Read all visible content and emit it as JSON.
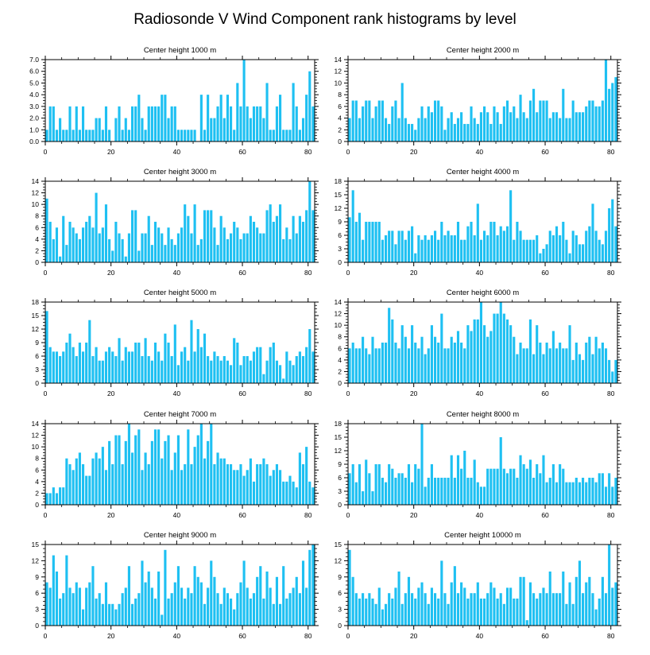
{
  "title": "Radiosonde V Wind Component rank histograms by level",
  "colors": {
    "bar": "#1ec0f2",
    "axis": "#000000",
    "background": "#ffffff"
  },
  "chart_data": [
    {
      "type": "bar",
      "title": "Center height 1000 m",
      "xlim": [
        0,
        82
      ],
      "xticks": [
        0,
        20,
        40,
        60,
        80
      ],
      "ylim": [
        0,
        7
      ],
      "yticks": [
        0,
        1,
        2,
        3,
        4,
        5,
        6,
        7
      ],
      "yticklabels": [
        "0.0",
        "1.0",
        "2.0",
        "3.0",
        "4.0",
        "5.0",
        "6.0",
        "7.0"
      ],
      "values": [
        1,
        3,
        3,
        1,
        2,
        1,
        1,
        3,
        1,
        3,
        1,
        3,
        1,
        1,
        1,
        2,
        2,
        1,
        3,
        1,
        0,
        2,
        3,
        1,
        2,
        1,
        3,
        3,
        4,
        2,
        1,
        3,
        3,
        3,
        3,
        4,
        4,
        2,
        3,
        3,
        1,
        1,
        1,
        1,
        1,
        1,
        0,
        4,
        1,
        4,
        2,
        2,
        3,
        4,
        2,
        4,
        3,
        1,
        5,
        3,
        7,
        3,
        2,
        3,
        3,
        3,
        2,
        5,
        1,
        1,
        3,
        4,
        1,
        1,
        1,
        5,
        3,
        1,
        2,
        4,
        6,
        3
      ]
    },
    {
      "type": "bar",
      "title": "Center height 2000 m",
      "xlim": [
        0,
        82
      ],
      "xticks": [
        0,
        20,
        40,
        60,
        80
      ],
      "ylim": [
        0,
        14
      ],
      "yticks": [
        0,
        2,
        4,
        6,
        8,
        10,
        12,
        14
      ],
      "yticklabels": [
        "0",
        "2",
        "4",
        "6",
        "8",
        "10",
        "12",
        "14"
      ],
      "values": [
        4,
        7,
        7,
        4,
        6,
        7,
        7,
        4,
        6,
        7,
        7,
        4,
        3,
        6,
        7,
        4,
        10,
        4,
        3,
        3,
        2,
        4,
        6,
        4,
        6,
        5,
        7,
        7,
        6,
        2,
        4,
        5,
        3,
        4,
        5,
        3,
        3,
        6,
        4,
        3,
        5,
        6,
        5,
        3,
        6,
        5,
        3,
        6,
        7,
        5,
        6,
        4,
        8,
        5,
        4,
        7,
        9,
        5,
        7,
        7,
        7,
        4,
        5,
        5,
        4,
        9,
        4,
        4,
        7,
        5,
        5,
        5,
        6,
        7,
        7,
        6,
        6,
        7,
        14,
        9,
        10,
        11
      ]
    },
    {
      "type": "bar",
      "title": "Center height 3000 m",
      "xlim": [
        0,
        82
      ],
      "xticks": [
        0,
        20,
        40,
        60,
        80
      ],
      "ylim": [
        0,
        14
      ],
      "yticks": [
        0,
        2,
        4,
        6,
        8,
        10,
        12,
        14
      ],
      "yticklabels": [
        "0",
        "2",
        "4",
        "6",
        "8",
        "10",
        "12",
        "14"
      ],
      "values": [
        11,
        7,
        4,
        6,
        1,
        8,
        3,
        7,
        6,
        5,
        4,
        6,
        7,
        8,
        6,
        12,
        5,
        6,
        10,
        4,
        2,
        7,
        5,
        4,
        1,
        5,
        9,
        9,
        2,
        5,
        5,
        8,
        3,
        7,
        6,
        5,
        3,
        6,
        4,
        3,
        5,
        6,
        10,
        8,
        5,
        10,
        3,
        4,
        9,
        9,
        9,
        6,
        3,
        8,
        6,
        4,
        5,
        7,
        6,
        4,
        5,
        5,
        8,
        7,
        6,
        5,
        5,
        9,
        10,
        7,
        8,
        10,
        4,
        6,
        4,
        8,
        5,
        8,
        7,
        9,
        14,
        9
      ]
    },
    {
      "type": "bar",
      "title": "Center height 4000 m",
      "xlim": [
        0,
        82
      ],
      "xticks": [
        0,
        20,
        40,
        60,
        80
      ],
      "ylim": [
        0,
        18
      ],
      "yticks": [
        0,
        3,
        6,
        9,
        12,
        15,
        18
      ],
      "yticklabels": [
        "0",
        "3",
        "6",
        "9",
        "12",
        "15",
        "18"
      ],
      "values": [
        10,
        16,
        9,
        11,
        5,
        9,
        9,
        9,
        9,
        9,
        5,
        6,
        7,
        7,
        4,
        7,
        7,
        5,
        7,
        8,
        2,
        6,
        5,
        6,
        5,
        6,
        7,
        5,
        9,
        6,
        7,
        6,
        6,
        9,
        5,
        5,
        8,
        9,
        6,
        13,
        5,
        7,
        6,
        9,
        9,
        6,
        8,
        7,
        8,
        16,
        5,
        9,
        7,
        5,
        5,
        5,
        5,
        6,
        2,
        3,
        4,
        7,
        6,
        8,
        6,
        9,
        5,
        2,
        7,
        6,
        4,
        4,
        7,
        8,
        13,
        7,
        5,
        4,
        7,
        12,
        14,
        8
      ]
    },
    {
      "type": "bar",
      "title": "Center height 5000 m",
      "xlim": [
        0,
        82
      ],
      "xticks": [
        0,
        20,
        40,
        60,
        80
      ],
      "ylim": [
        0,
        18
      ],
      "yticks": [
        0,
        3,
        6,
        9,
        12,
        15,
        18
      ],
      "yticklabels": [
        "0",
        "3",
        "6",
        "9",
        "12",
        "15",
        "18"
      ],
      "values": [
        16,
        8,
        7,
        7,
        6,
        7,
        9,
        11,
        8,
        6,
        9,
        7,
        9,
        14,
        6,
        8,
        5,
        5,
        7,
        8,
        7,
        6,
        10,
        5,
        8,
        7,
        7,
        9,
        9,
        6,
        10,
        6,
        5,
        9,
        7,
        5,
        11,
        9,
        6,
        13,
        4,
        7,
        8,
        5,
        14,
        7,
        12,
        8,
        11,
        6,
        5,
        7,
        6,
        5,
        6,
        5,
        4,
        10,
        9,
        4,
        6,
        6,
        5,
        7,
        8,
        8,
        2,
        5,
        8,
        9,
        5,
        4,
        1,
        7,
        5,
        4,
        6,
        7,
        6,
        8,
        12,
        7
      ]
    },
    {
      "type": "bar",
      "title": "Center height 6000 m",
      "xlim": [
        0,
        82
      ],
      "xticks": [
        0,
        20,
        40,
        60,
        80
      ],
      "ylim": [
        0,
        14
      ],
      "yticks": [
        0,
        2,
        4,
        6,
        8,
        10,
        12,
        14
      ],
      "yticklabels": [
        "0",
        "2",
        "4",
        "6",
        "8",
        "10",
        "12",
        "14"
      ],
      "values": [
        6,
        7,
        6,
        6,
        8,
        6,
        5,
        8,
        6,
        6,
        7,
        7,
        13,
        11,
        7,
        6,
        10,
        8,
        6,
        10,
        7,
        6,
        8,
        5,
        6,
        10,
        8,
        7,
        12,
        6,
        6,
        8,
        7,
        9,
        7,
        6,
        10,
        9,
        11,
        11,
        14,
        10,
        8,
        9,
        12,
        12,
        14,
        12,
        11,
        10,
        8,
        5,
        7,
        6,
        6,
        11,
        5,
        10,
        7,
        5,
        7,
        6,
        9,
        6,
        7,
        6,
        6,
        10,
        4,
        7,
        5,
        4,
        7,
        8,
        5,
        8,
        6,
        7,
        6,
        4,
        2,
        4
      ]
    },
    {
      "type": "bar",
      "title": "Center height 7000 m",
      "xlim": [
        0,
        82
      ],
      "xticks": [
        0,
        20,
        40,
        60,
        80
      ],
      "ylim": [
        0,
        14
      ],
      "yticks": [
        0,
        2,
        4,
        6,
        8,
        10,
        12,
        14
      ],
      "yticklabels": [
        "0",
        "2",
        "4",
        "6",
        "8",
        "10",
        "12",
        "14"
      ],
      "values": [
        2,
        2,
        3,
        2,
        3,
        3,
        8,
        7,
        6,
        8,
        9,
        7,
        5,
        5,
        8,
        9,
        8,
        10,
        6,
        11,
        7,
        12,
        12,
        7,
        11,
        14,
        9,
        12,
        13,
        6,
        9,
        7,
        11,
        13,
        13,
        8,
        11,
        12,
        6,
        9,
        12,
        6,
        7,
        13,
        7,
        10,
        12,
        14,
        8,
        11,
        14,
        7,
        9,
        8,
        8,
        7,
        7,
        6,
        6,
        7,
        5,
        6,
        8,
        4,
        7,
        7,
        8,
        7,
        5,
        6,
        7,
        6,
        4,
        4,
        5,
        4,
        3,
        9,
        7,
        10,
        4,
        3
      ]
    },
    {
      "type": "bar",
      "title": "Center height 8000 m",
      "xlim": [
        0,
        82
      ],
      "xticks": [
        0,
        20,
        40,
        60,
        80
      ],
      "ylim": [
        0,
        18
      ],
      "yticks": [
        0,
        3,
        6,
        9,
        12,
        15,
        18
      ],
      "yticklabels": [
        "0",
        "3",
        "6",
        "9",
        "12",
        "15",
        "18"
      ],
      "values": [
        7,
        9,
        5,
        9,
        3,
        10,
        7,
        3,
        9,
        9,
        6,
        5,
        9,
        8,
        6,
        7,
        7,
        6,
        9,
        5,
        9,
        8,
        18,
        4,
        6,
        9,
        6,
        6,
        6,
        6,
        6,
        11,
        6,
        11,
        8,
        12,
        6,
        6,
        10,
        5,
        4,
        4,
        8,
        8,
        8,
        8,
        15,
        8,
        7,
        8,
        8,
        6,
        11,
        9,
        8,
        10,
        6,
        9,
        7,
        11,
        5,
        6,
        9,
        5,
        9,
        8,
        5,
        5,
        5,
        6,
        5,
        6,
        5,
        6,
        6,
        5,
        7,
        7,
        4,
        7,
        4,
        6
      ]
    },
    {
      "type": "bar",
      "title": "Center height 9000 m",
      "xlim": [
        0,
        82
      ],
      "xticks": [
        0,
        20,
        40,
        60,
        80
      ],
      "ylim": [
        0,
        15
      ],
      "yticks": [
        0,
        3,
        6,
        9,
        12,
        15
      ],
      "yticklabels": [
        "0",
        "3",
        "6",
        "9",
        "12",
        "15"
      ],
      "values": [
        8,
        7,
        13,
        10,
        5,
        6,
        13,
        7,
        6,
        8,
        7,
        3,
        7,
        8,
        11,
        5,
        6,
        4,
        8,
        4,
        4,
        3,
        4,
        6,
        7,
        11,
        4,
        5,
        6,
        12,
        8,
        10,
        7,
        5,
        10,
        2,
        14,
        5,
        6,
        8,
        11,
        7,
        5,
        7,
        6,
        11,
        9,
        8,
        4,
        7,
        12,
        9,
        6,
        4,
        7,
        6,
        5,
        3,
        6,
        8,
        12,
        7,
        5,
        6,
        9,
        11,
        5,
        10,
        7,
        4,
        9,
        4,
        11,
        5,
        6,
        7,
        9,
        6,
        12,
        7,
        14,
        15
      ]
    },
    {
      "type": "bar",
      "title": "Center height 10000 m",
      "xlim": [
        0,
        82
      ],
      "xticks": [
        0,
        20,
        40,
        60,
        80
      ],
      "ylim": [
        0,
        15
      ],
      "yticks": [
        0,
        3,
        6,
        9,
        12,
        15
      ],
      "yticklabels": [
        "0",
        "3",
        "6",
        "9",
        "12",
        "15"
      ],
      "values": [
        14,
        9,
        6,
        5,
        6,
        5,
        6,
        5,
        4,
        7,
        3,
        4,
        6,
        5,
        7,
        10,
        4,
        6,
        9,
        6,
        5,
        7,
        8,
        6,
        4,
        7,
        6,
        5,
        12,
        6,
        4,
        8,
        11,
        6,
        8,
        7,
        5,
        6,
        6,
        8,
        5,
        5,
        6,
        8,
        7,
        5,
        6,
        4,
        7,
        7,
        5,
        5,
        9,
        9,
        1,
        8,
        6,
        5,
        6,
        7,
        6,
        10,
        6,
        6,
        6,
        10,
        4,
        8,
        4,
        9,
        12,
        6,
        8,
        9,
        6,
        3,
        5,
        9,
        6,
        15,
        7,
        8
      ]
    }
  ]
}
